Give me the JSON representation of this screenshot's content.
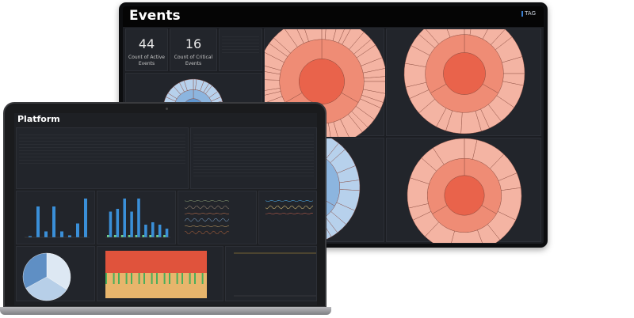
{
  "events_dashboard": {
    "title": "Events",
    "logo": "TAG",
    "kpis": [
      {
        "value": "44",
        "label": "Count of Active Events"
      },
      {
        "value": "16",
        "label": "Count of Critical Events"
      }
    ],
    "colors": {
      "red_inner": "#e9634b",
      "red_mid": "#ef8c75",
      "red_outer": "#f4b4a3",
      "blue_inner": "#5f96cf",
      "blue_mid": "#8cb5df",
      "blue_outer": "#b7d1ec"
    }
  },
  "platform_dashboard": {
    "title": "Platform",
    "bar_chart_1": [
      3,
      78,
      15,
      78,
      15,
      5,
      35,
      98
    ],
    "bar_chart_2": [
      65,
      72,
      98,
      65,
      98,
      32,
      38,
      32,
      22
    ],
    "pie_slices": [
      0.34,
      0.33,
      0.33
    ],
    "pie_colors": [
      "#dde8f3",
      "#b7cfe8",
      "#5f8fc4"
    ],
    "colors": {
      "bar": "#3a8fd8",
      "bar_secondary": "#6fd08c",
      "heat_red": "#e0533c",
      "heat_green": "#4cae5a",
      "heat_tan": "#e8b56c"
    }
  }
}
